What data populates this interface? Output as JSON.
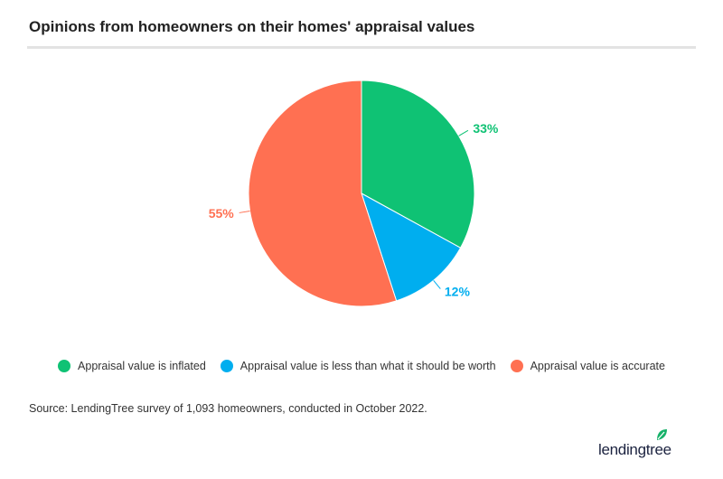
{
  "title": "Opinions from homeowners on their homes' appraisal values",
  "chart_data": {
    "type": "pie",
    "title": "Opinions from homeowners on their homes' appraisal values",
    "slices": [
      {
        "label": "Appraisal value is inflated",
        "value": 33,
        "display": "33%",
        "color": "#0fc274"
      },
      {
        "label": "Appraisal value is less than what it should be worth",
        "value": 12,
        "display": "12%",
        "color": "#00aeef"
      },
      {
        "label": "Appraisal value is accurate",
        "value": 55,
        "display": "55%",
        "color": "#ff7052"
      }
    ],
    "legend_position": "bottom"
  },
  "source": "Source: LendingTree survey of 1,093 homeowners, conducted in October 2022.",
  "logo": "lendingtree"
}
